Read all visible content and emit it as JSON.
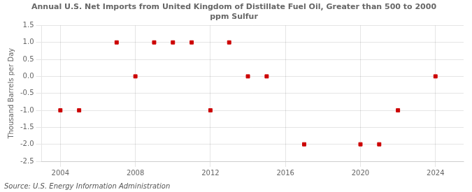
{
  "chart_data": {
    "type": "scatter",
    "title": [
      "Annual U.S. Net Imports from United Kingdom of Distillate Fuel Oil, Greater than 500 to 2000",
      "ppm Sulfur"
    ],
    "ylabel": "Thousand Barrels per Day",
    "annotation": "Source: U.S. Energy Information Administration",
    "x": [
      2004,
      2005,
      2007,
      2008,
      2009,
      2010,
      2011,
      2012,
      2013,
      2014,
      2015,
      2017,
      2020,
      2021,
      2022,
      2024
    ],
    "values": [
      -1.0,
      -1.0,
      1.0,
      0.0,
      1.0,
      1.0,
      1.0,
      -1.0,
      1.0,
      0.0,
      0.0,
      -2.0,
      -2.0,
      -2.0,
      -1.0,
      0.0
    ],
    "color": "#cc0000",
    "marker": "square",
    "xlim": [
      2003.0,
      2025.5
    ],
    "xticks": [
      2004,
      2008,
      2012,
      2016,
      2020,
      2024
    ],
    "ylim": [
      -2.5,
      1.5
    ],
    "yticks": [
      -2.5,
      {
        "value": -2.0,
        "label": "-2.0"
      },
      -1.5,
      {
        "value": -1.0,
        "label": "-1.0"
      },
      -0.5,
      {
        "value": 0.0,
        "label": "0.0"
      },
      0.5,
      {
        "value": 1.0,
        "label": "1.0"
      },
      1.5
    ],
    "grid": true
  }
}
